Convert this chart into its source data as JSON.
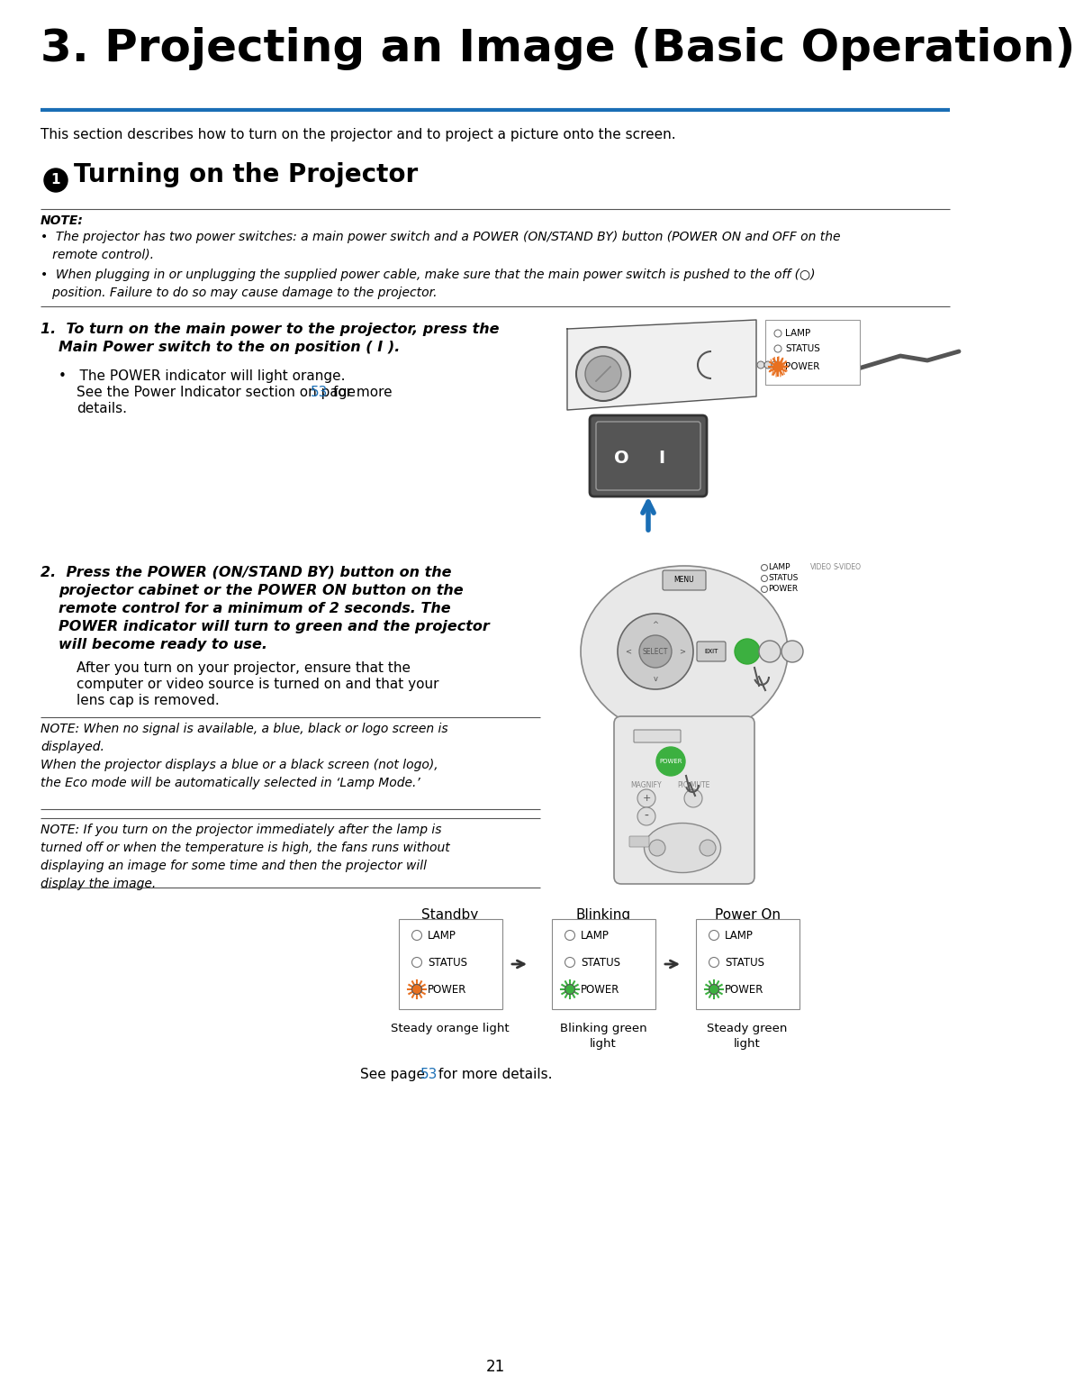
{
  "title": "3. Projecting an Image (Basic Operation)",
  "blue_line_color": "#1a6eb5",
  "intro_text": "This section describes how to turn on the projector and to project a picture onto the screen.",
  "page_number": "21",
  "orange_color": "#e87020",
  "green_color": "#3cb040",
  "link_color": "#1a6eb5",
  "bg_color": "#ffffff",
  "text_color": "#000000",
  "gray_color": "#888888",
  "dark_gray": "#444444",
  "note_line_color": "#555555"
}
